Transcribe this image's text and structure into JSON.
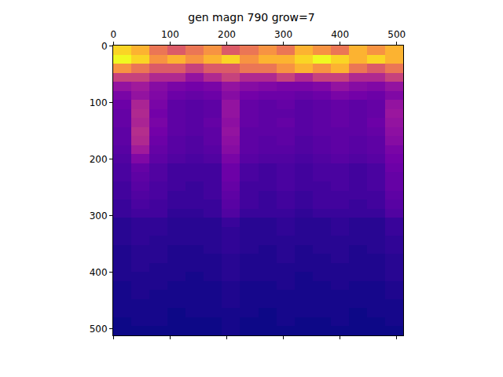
{
  "chart_data": {
    "type": "heatmap",
    "title": "gen magn 790 grow=7",
    "xlim": [
      -0.5,
      511.5
    ],
    "ylim": [
      511.5,
      -0.5
    ],
    "xticks": [
      0,
      100,
      200,
      300,
      400,
      500
    ],
    "yticks": [
      0,
      100,
      200,
      300,
      400,
      500
    ],
    "x": [
      15.5,
      47.5,
      79.5,
      111.5,
      143.5,
      175.5,
      207.5,
      239.5,
      271.5,
      303.5,
      335.5,
      367.5,
      399.5,
      431.5,
      463.5,
      495.5
    ],
    "y": [
      7.5,
      23.5,
      39.5,
      55.5,
      71.5,
      87.5,
      103.5,
      119.5,
      135.5,
      151.5,
      167.5,
      183.5,
      199.5,
      215.5,
      231.5,
      247.5,
      263.5,
      279.5,
      295.5,
      311.5,
      327.5,
      343.5,
      359.5,
      375.5,
      391.5,
      407.5,
      423.5,
      439.5,
      455.5,
      471.5,
      487.5,
      503.5
    ],
    "cells": [
      [
        0.55,
        0.5,
        0.4,
        0.35,
        0.4,
        0.45,
        0.35,
        0.4,
        0.45,
        0.4,
        0.5,
        0.45,
        0.4,
        0.5,
        0.45,
        0.5
      ],
      [
        0.6,
        0.55,
        0.45,
        0.5,
        0.45,
        0.5,
        0.55,
        0.45,
        0.5,
        0.5,
        0.55,
        0.6,
        0.55,
        0.5,
        0.55,
        0.5
      ],
      [
        0.45,
        0.4,
        0.35,
        0.35,
        0.3,
        0.35,
        0.35,
        0.4,
        0.4,
        0.45,
        0.5,
        0.45,
        0.5,
        0.4,
        0.35,
        0.4
      ],
      [
        0.3,
        0.3,
        0.25,
        0.25,
        0.2,
        0.25,
        0.3,
        0.25,
        0.25,
        0.3,
        0.25,
        0.3,
        0.3,
        0.25,
        0.25,
        0.3
      ],
      [
        0.2,
        0.22,
        0.18,
        0.16,
        0.15,
        0.16,
        0.2,
        0.18,
        0.17,
        0.16,
        0.16,
        0.17,
        0.2,
        0.18,
        0.17,
        0.2
      ],
      [
        0.16,
        0.2,
        0.17,
        0.14,
        0.13,
        0.14,
        0.18,
        0.15,
        0.14,
        0.14,
        0.13,
        0.14,
        0.16,
        0.15,
        0.14,
        0.17
      ],
      [
        0.14,
        0.24,
        0.16,
        0.12,
        0.11,
        0.12,
        0.2,
        0.13,
        0.12,
        0.13,
        0.11,
        0.12,
        0.13,
        0.12,
        0.13,
        0.2
      ],
      [
        0.13,
        0.25,
        0.15,
        0.12,
        0.11,
        0.12,
        0.2,
        0.13,
        0.12,
        0.12,
        0.11,
        0.12,
        0.13,
        0.12,
        0.13,
        0.21
      ],
      [
        0.13,
        0.24,
        0.16,
        0.12,
        0.11,
        0.13,
        0.19,
        0.13,
        0.12,
        0.13,
        0.11,
        0.12,
        0.13,
        0.12,
        0.14,
        0.2
      ],
      [
        0.12,
        0.26,
        0.15,
        0.12,
        0.11,
        0.12,
        0.2,
        0.12,
        0.12,
        0.12,
        0.11,
        0.12,
        0.12,
        0.12,
        0.13,
        0.19
      ],
      [
        0.12,
        0.25,
        0.14,
        0.11,
        0.1,
        0.12,
        0.19,
        0.12,
        0.11,
        0.12,
        0.1,
        0.11,
        0.12,
        0.11,
        0.12,
        0.18
      ],
      [
        0.11,
        0.22,
        0.13,
        0.11,
        0.1,
        0.11,
        0.18,
        0.12,
        0.11,
        0.11,
        0.1,
        0.11,
        0.12,
        0.11,
        0.12,
        0.16
      ],
      [
        0.1,
        0.17,
        0.12,
        0.1,
        0.09,
        0.1,
        0.16,
        0.11,
        0.1,
        0.1,
        0.09,
        0.1,
        0.11,
        0.1,
        0.11,
        0.15
      ],
      [
        0.09,
        0.13,
        0.1,
        0.08,
        0.08,
        0.08,
        0.14,
        0.09,
        0.08,
        0.09,
        0.08,
        0.09,
        0.09,
        0.08,
        0.09,
        0.14
      ],
      [
        0.09,
        0.12,
        0.1,
        0.08,
        0.08,
        0.08,
        0.14,
        0.09,
        0.08,
        0.09,
        0.08,
        0.09,
        0.09,
        0.08,
        0.09,
        0.13
      ],
      [
        0.08,
        0.11,
        0.09,
        0.08,
        0.07,
        0.08,
        0.13,
        0.08,
        0.08,
        0.09,
        0.08,
        0.08,
        0.09,
        0.08,
        0.09,
        0.13
      ],
      [
        0.08,
        0.1,
        0.09,
        0.07,
        0.07,
        0.08,
        0.12,
        0.08,
        0.07,
        0.08,
        0.07,
        0.08,
        0.08,
        0.08,
        0.08,
        0.12
      ],
      [
        0.07,
        0.09,
        0.08,
        0.07,
        0.07,
        0.07,
        0.11,
        0.08,
        0.07,
        0.08,
        0.07,
        0.08,
        0.08,
        0.07,
        0.08,
        0.11
      ],
      [
        0.07,
        0.08,
        0.08,
        0.06,
        0.06,
        0.07,
        0.1,
        0.07,
        0.07,
        0.07,
        0.06,
        0.07,
        0.07,
        0.07,
        0.07,
        0.1
      ],
      [
        0.05,
        0.06,
        0.06,
        0.05,
        0.05,
        0.05,
        0.07,
        0.05,
        0.05,
        0.06,
        0.05,
        0.05,
        0.06,
        0.05,
        0.05,
        0.07
      ],
      [
        0.05,
        0.06,
        0.06,
        0.05,
        0.05,
        0.05,
        0.06,
        0.05,
        0.05,
        0.06,
        0.05,
        0.05,
        0.06,
        0.05,
        0.05,
        0.07
      ],
      [
        0.05,
        0.06,
        0.05,
        0.05,
        0.05,
        0.05,
        0.06,
        0.05,
        0.05,
        0.05,
        0.05,
        0.05,
        0.05,
        0.05,
        0.05,
        0.06
      ],
      [
        0.04,
        0.05,
        0.05,
        0.04,
        0.04,
        0.05,
        0.06,
        0.05,
        0.04,
        0.05,
        0.04,
        0.05,
        0.05,
        0.04,
        0.05,
        0.06
      ],
      [
        0.04,
        0.05,
        0.05,
        0.04,
        0.04,
        0.04,
        0.05,
        0.04,
        0.04,
        0.05,
        0.04,
        0.04,
        0.05,
        0.04,
        0.04,
        0.05
      ],
      [
        0.04,
        0.05,
        0.04,
        0.04,
        0.04,
        0.04,
        0.05,
        0.04,
        0.04,
        0.04,
        0.04,
        0.04,
        0.04,
        0.04,
        0.04,
        0.05
      ],
      [
        0.04,
        0.04,
        0.04,
        0.04,
        0.03,
        0.04,
        0.05,
        0.04,
        0.04,
        0.04,
        0.03,
        0.04,
        0.04,
        0.04,
        0.04,
        0.05
      ],
      [
        0.03,
        0.04,
        0.04,
        0.03,
        0.03,
        0.03,
        0.04,
        0.03,
        0.03,
        0.04,
        0.03,
        0.03,
        0.04,
        0.03,
        0.03,
        0.04
      ],
      [
        0.03,
        0.04,
        0.03,
        0.03,
        0.03,
        0.03,
        0.04,
        0.03,
        0.03,
        0.03,
        0.03,
        0.03,
        0.03,
        0.03,
        0.03,
        0.04
      ],
      [
        0.03,
        0.03,
        0.03,
        0.03,
        0.03,
        0.03,
        0.04,
        0.03,
        0.03,
        0.03,
        0.03,
        0.03,
        0.03,
        0.03,
        0.03,
        0.03
      ],
      [
        0.03,
        0.03,
        0.03,
        0.02,
        0.03,
        0.03,
        0.03,
        0.03,
        0.02,
        0.03,
        0.03,
        0.03,
        0.03,
        0.02,
        0.03,
        0.03
      ],
      [
        0.02,
        0.03,
        0.03,
        0.02,
        0.02,
        0.02,
        0.03,
        0.02,
        0.02,
        0.03,
        0.02,
        0.02,
        0.03,
        0.02,
        0.02,
        0.03
      ],
      [
        0.02,
        0.02,
        0.02,
        0.02,
        0.02,
        0.02,
        0.03,
        0.02,
        0.02,
        0.02,
        0.02,
        0.02,
        0.02,
        0.02,
        0.02,
        0.02
      ]
    ]
  }
}
